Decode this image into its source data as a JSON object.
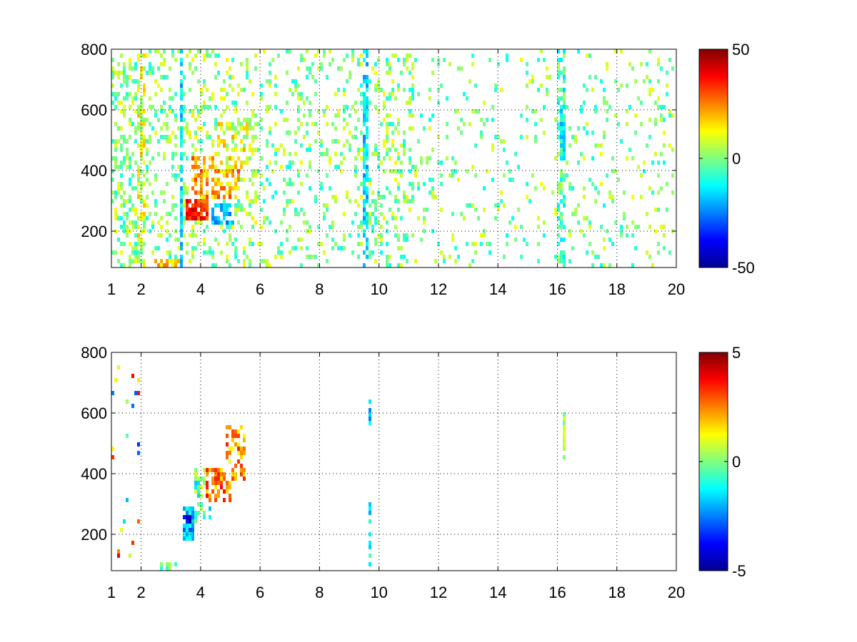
{
  "chart_data": [
    {
      "type": "heatmap",
      "title": "",
      "xlabel": "",
      "ylabel": "",
      "xlim": [
        1,
        20
      ],
      "ylim": [
        80,
        800
      ],
      "xticks": [
        1,
        2,
        4,
        6,
        8,
        10,
        12,
        14,
        16,
        18,
        20
      ],
      "yticks": [
        200,
        400,
        600,
        800
      ],
      "grid": true,
      "colormap": "jet",
      "colorbar": {
        "min": -50,
        "max": 50,
        "ticks": [
          50,
          0,
          -50
        ]
      },
      "features": [
        {
          "x": [
            1.0,
            1.9
          ],
          "y": [
            80,
            800
          ],
          "density": 0.33,
          "value": 0,
          "spread": 12
        },
        {
          "x": [
            1.9,
            2.15
          ],
          "y": [
            80,
            800
          ],
          "density": 0.55,
          "value": 8,
          "spread": 12
        },
        {
          "x": [
            2.15,
            3.3
          ],
          "y": [
            80,
            800
          ],
          "density": 0.22,
          "value": 0,
          "spread": 12
        },
        {
          "x": [
            3.3,
            3.45
          ],
          "y": [
            80,
            800
          ],
          "density": 0.7,
          "value": -16,
          "spread": 8
        },
        {
          "x": [
            3.45,
            6.0
          ],
          "y": [
            80,
            800
          ],
          "density": 0.26,
          "value": 2,
          "spread": 12
        },
        {
          "x": [
            3.5,
            4.3
          ],
          "y": [
            230,
            300
          ],
          "density": 0.9,
          "value": 34,
          "spread": 10
        },
        {
          "x": [
            3.7,
            5.3
          ],
          "y": [
            300,
            450
          ],
          "density": 0.6,
          "value": 20,
          "spread": 12
        },
        {
          "x": [
            4.4,
            5.1
          ],
          "y": [
            220,
            290
          ],
          "density": 0.7,
          "value": -20,
          "spread": 8
        },
        {
          "x": [
            4.6,
            5.8
          ],
          "y": [
            400,
            560
          ],
          "density": 0.55,
          "value": 10,
          "spread": 12
        },
        {
          "x": [
            2.4,
            3.3
          ],
          "y": [
            80,
            110
          ],
          "density": 0.75,
          "value": 18,
          "spread": 8
        },
        {
          "x": [
            6.0,
            9.5
          ],
          "y": [
            80,
            800
          ],
          "density": 0.17,
          "value": 0,
          "spread": 12
        },
        {
          "x": [
            9.5,
            9.65
          ],
          "y": [
            80,
            800
          ],
          "density": 0.7,
          "value": -16,
          "spread": 8
        },
        {
          "x": [
            9.65,
            11.2
          ],
          "y": [
            80,
            800
          ],
          "density": 0.28,
          "value": 0,
          "spread": 12
        },
        {
          "x": [
            11.2,
            16.0
          ],
          "y": [
            80,
            800
          ],
          "density": 0.09,
          "value": 0,
          "spread": 12
        },
        {
          "x": [
            16.0,
            16.3
          ],
          "y": [
            80,
            800
          ],
          "density": 0.45,
          "value": -5,
          "spread": 12
        },
        {
          "x": [
            16.1,
            16.3
          ],
          "y": [
            450,
            620
          ],
          "density": 0.9,
          "value": -12,
          "spread": 10
        },
        {
          "x": [
            16.3,
            20.0
          ],
          "y": [
            80,
            800
          ],
          "density": 0.1,
          "value": 0,
          "spread": 12
        }
      ]
    },
    {
      "type": "heatmap",
      "title": "",
      "xlabel": "",
      "ylabel": "",
      "xlim": [
        1,
        20
      ],
      "ylim": [
        80,
        800
      ],
      "xticks": [
        1,
        2,
        4,
        6,
        8,
        10,
        12,
        14,
        16,
        18,
        20
      ],
      "yticks": [
        200,
        400,
        600,
        800
      ],
      "grid": true,
      "colormap": "jet",
      "colorbar": {
        "min": -5,
        "max": 5,
        "ticks": [
          5,
          0,
          -5
        ]
      },
      "features": [
        {
          "x": [
            3.4,
            3.8
          ],
          "y": [
            180,
            290
          ],
          "density": 0.85,
          "value": -2.0,
          "spread": 1.2
        },
        {
          "x": [
            3.8,
            4.4
          ],
          "y": [
            240,
            420
          ],
          "density": 0.45,
          "value": -0.5,
          "spread": 1.5
        },
        {
          "x": [
            4.2,
            5.0
          ],
          "y": [
            300,
            420
          ],
          "density": 0.6,
          "value": 2.6,
          "spread": 1.2
        },
        {
          "x": [
            4.8,
            5.5
          ],
          "y": [
            380,
            560
          ],
          "density": 0.5,
          "value": 2.2,
          "spread": 1.5
        },
        {
          "x": [
            3.4,
            3.7
          ],
          "y": [
            240,
            260
          ],
          "density": 0.9,
          "value": -4.0,
          "spread": 0.8
        },
        {
          "x": [
            2.6,
            3.3
          ],
          "y": [
            85,
            110
          ],
          "density": 0.5,
          "value": -0.3,
          "spread": 0.8
        },
        {
          "x": [
            1.0,
            2.0
          ],
          "y": [
            100,
            800
          ],
          "density": 0.04,
          "value": 0,
          "spread": 4.0
        },
        {
          "x": [
            9.6,
            9.7
          ],
          "y": [
            100,
            310
          ],
          "density": 0.5,
          "value": -1.5,
          "spread": 1.0
        },
        {
          "x": [
            9.6,
            9.7
          ],
          "y": [
            540,
            650
          ],
          "density": 0.5,
          "value": -1.5,
          "spread": 1.0
        },
        {
          "x": [
            16.15,
            16.3
          ],
          "y": [
            440,
            620
          ],
          "density": 0.9,
          "value": 0.2,
          "spread": 0.8
        }
      ]
    }
  ]
}
